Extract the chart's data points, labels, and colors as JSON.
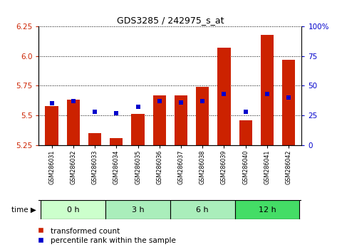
{
  "title": "GDS3285 / 242975_s_at",
  "samples": [
    "GSM286031",
    "GSM286032",
    "GSM286033",
    "GSM286034",
    "GSM286035",
    "GSM286036",
    "GSM286037",
    "GSM286038",
    "GSM286039",
    "GSM286040",
    "GSM286041",
    "GSM286042"
  ],
  "transformed_count": [
    5.58,
    5.63,
    5.35,
    5.31,
    5.51,
    5.67,
    5.67,
    5.74,
    6.07,
    5.46,
    6.18,
    5.97
  ],
  "percentile_rank": [
    35,
    37,
    28,
    27,
    32,
    37,
    36,
    37,
    43,
    28,
    43,
    40
  ],
  "ylim_left": [
    5.25,
    6.25
  ],
  "ylim_right": [
    0,
    100
  ],
  "yticks_left": [
    5.25,
    5.5,
    5.75,
    6.0,
    6.25
  ],
  "yticks_right": [
    0,
    25,
    50,
    75,
    100
  ],
  "bar_color": "#cc2200",
  "dot_color": "#0000cc",
  "bar_baseline": 5.25,
  "time_groups": [
    {
      "label": "0 h",
      "start": 0,
      "end": 2,
      "color": "#ccffcc"
    },
    {
      "label": "3 h",
      "start": 3,
      "end": 5,
      "color": "#aaeebb"
    },
    {
      "label": "6 h",
      "start": 6,
      "end": 8,
      "color": "#aaeebb"
    },
    {
      "label": "12 h",
      "start": 9,
      "end": 11,
      "color": "#44dd66"
    }
  ],
  "tick_label_color_left": "#cc2200",
  "tick_label_color_right": "#0000cc",
  "bg_color": "#ffffff"
}
